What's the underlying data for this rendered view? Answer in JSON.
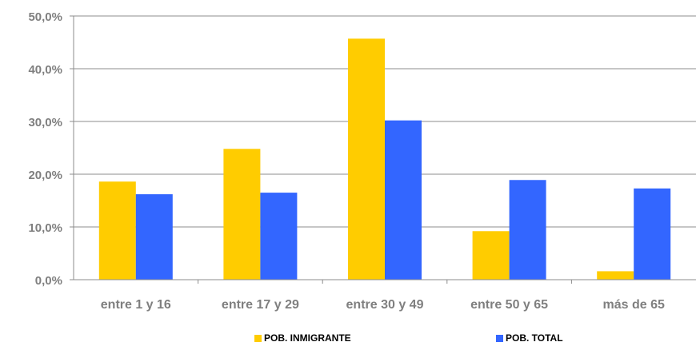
{
  "chart_data": {
    "type": "bar",
    "categories": [
      "entre 1 y 16",
      "entre 17 y 29",
      "entre 30 y 49",
      "entre 50 y 65",
      "más de 65"
    ],
    "series": [
      {
        "name": "POB. INMIGRANTE",
        "color": "#ffcc00",
        "values": [
          18.6,
          24.8,
          45.7,
          9.2,
          1.6
        ]
      },
      {
        "name": "POB. TOTAL",
        "color": "#3366ff",
        "values": [
          16.2,
          16.5,
          30.2,
          18.9,
          17.3
        ]
      }
    ],
    "y_ticks": [
      "0,0%",
      "10,0%",
      "20,0%",
      "30,0%",
      "40,0%",
      "50,0%"
    ],
    "ylim": [
      0,
      50
    ],
    "y_step": 10,
    "grid": true,
    "legend_position": "bottom",
    "title": "",
    "xlabel": "",
    "ylabel": ""
  }
}
